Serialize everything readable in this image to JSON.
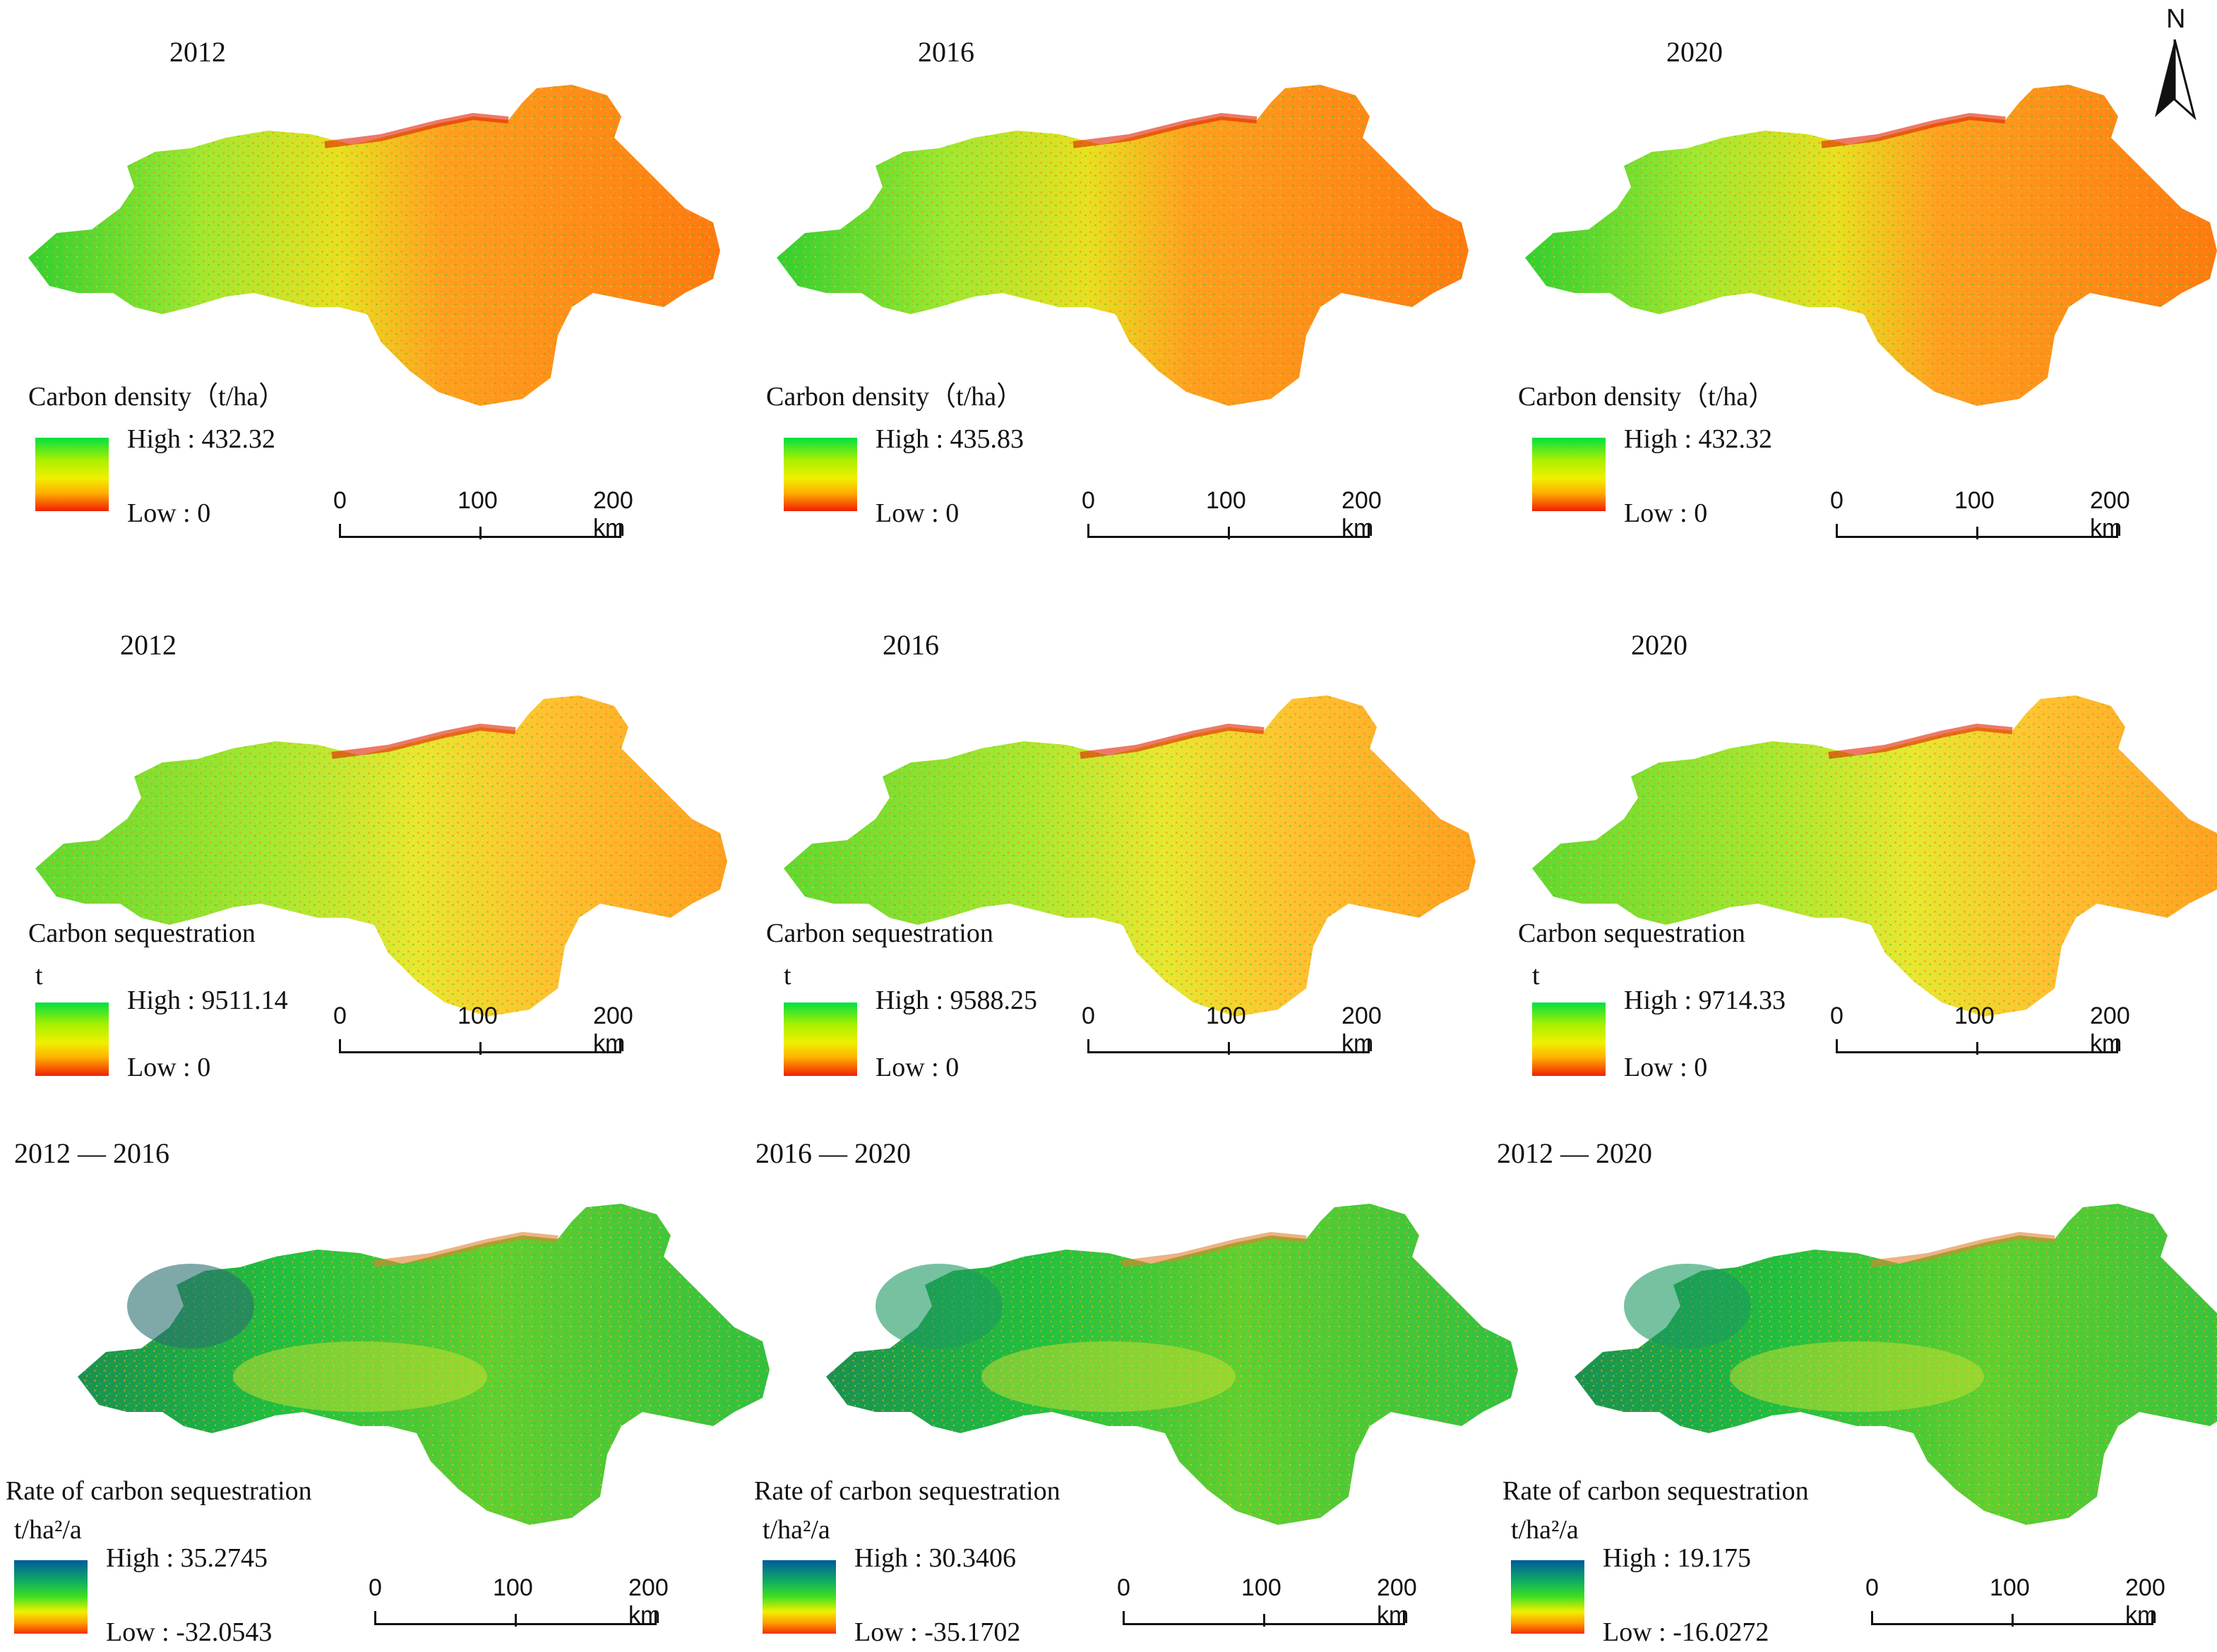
{
  "north": {
    "label": "N"
  },
  "scale": {
    "t0": "0",
    "t1": "100",
    "t2": "200 km"
  },
  "colors": {
    "density_ramp": [
      "#00e040",
      "#a8f000",
      "#f0f000",
      "#ffb000",
      "#ff5010",
      "#e00000"
    ],
    "rate_ramp": [
      "#005a9c",
      "#1aa060",
      "#00d040",
      "#b0f000",
      "#ffd000",
      "#ff8020",
      "#e02000"
    ]
  },
  "panels": [
    {
      "title": "2012",
      "legend_title": "Carbon density（t/ha）",
      "unit": "",
      "high": "High : 432.32",
      "low": "Low : 0",
      "kind": "density"
    },
    {
      "title": "2016",
      "legend_title": "Carbon density（t/ha）",
      "unit": "",
      "high": "High : 435.83",
      "low": "Low : 0",
      "kind": "density"
    },
    {
      "title": "2020",
      "legend_title": "Carbon density（t/ha）",
      "unit": "",
      "high": "High : 432.32",
      "low": "Low : 0",
      "kind": "density"
    },
    {
      "title": "2012",
      "legend_title": "Carbon sequestration",
      "unit": "t",
      "high": "High : 9511.14",
      "low": "Low : 0",
      "kind": "seq"
    },
    {
      "title": "2016",
      "legend_title": "Carbon sequestration",
      "unit": "t",
      "high": "High : 9588.25",
      "low": "Low : 0",
      "kind": "seq"
    },
    {
      "title": "2020",
      "legend_title": "Carbon sequestration",
      "unit": "t",
      "high": "High : 9714.33",
      "low": "Low : 0",
      "kind": "seq"
    },
    {
      "title": "2012 — 2016",
      "legend_title": "Rate of carbon sequestration",
      "unit": "t/ha²/a",
      "high": "High : 35.2745",
      "low": "Low : -32.0543",
      "kind": "rate"
    },
    {
      "title": "2016 — 2020",
      "legend_title": "Rate of carbon sequestration",
      "unit": "t/ha²/a",
      "high": "High : 30.3406",
      "low": "Low : -35.1702",
      "kind": "rate"
    },
    {
      "title": "2012 — 2020",
      "legend_title": "Rate of carbon sequestration",
      "unit": "t/ha²/a",
      "high": "High : 19.175",
      "low": "Low : -16.0272",
      "kind": "rate"
    }
  ]
}
